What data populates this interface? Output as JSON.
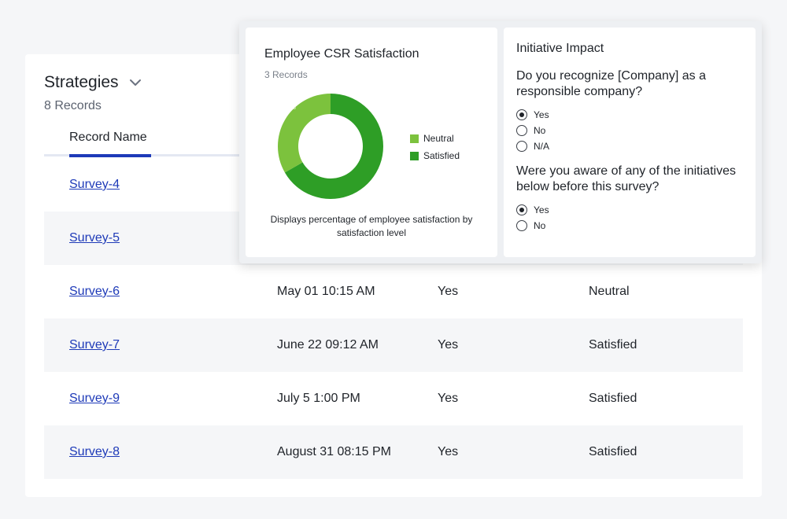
{
  "list": {
    "title": "Strategies",
    "count": "8 Records",
    "column_header": "Record Name",
    "rows": [
      {
        "name": "Survey-4",
        "date": "",
        "answer": "",
        "satisfaction": ""
      },
      {
        "name": "Survey-5",
        "date": "",
        "answer": "",
        "satisfaction": ""
      },
      {
        "name": "Survey-6",
        "date": "May 01 10:15 AM",
        "answer": "Yes",
        "satisfaction": "Neutral"
      },
      {
        "name": "Survey-7",
        "date": "June 22 09:12 AM",
        "answer": "Yes",
        "satisfaction": "Satisfied"
      },
      {
        "name": "Survey-9",
        "date": "July 5 1:00 PM",
        "answer": "Yes",
        "satisfaction": "Satisfied"
      },
      {
        "name": "Survey-8",
        "date": "August 31 08:15 PM",
        "answer": "Yes",
        "satisfaction": "Satisfied"
      }
    ]
  },
  "chart_card": {
    "title": "Employee CSR Satisfaction",
    "subtitle": "3 Records",
    "caption": "Displays percentage of employee satisfaction by satisfaction level"
  },
  "chart_data": {
    "type": "pie",
    "categories": [
      "Neutral",
      "Satisfied"
    ],
    "values": [
      33.3,
      66.7
    ],
    "labels": [
      "33.3%",
      "66.7%"
    ],
    "colors": [
      "#7cc23d",
      "#2e9e26"
    ],
    "legend": "right"
  },
  "form": {
    "title": "Initiative Impact",
    "q1": {
      "text": "Do you recognize [Company] as a responsible company?",
      "options": [
        "Yes",
        "No",
        "N/A"
      ],
      "selected": 0
    },
    "q2": {
      "text": "Were you aware of any of the initiatives below before this survey?",
      "options": [
        "Yes",
        "No"
      ],
      "selected": 0
    }
  }
}
